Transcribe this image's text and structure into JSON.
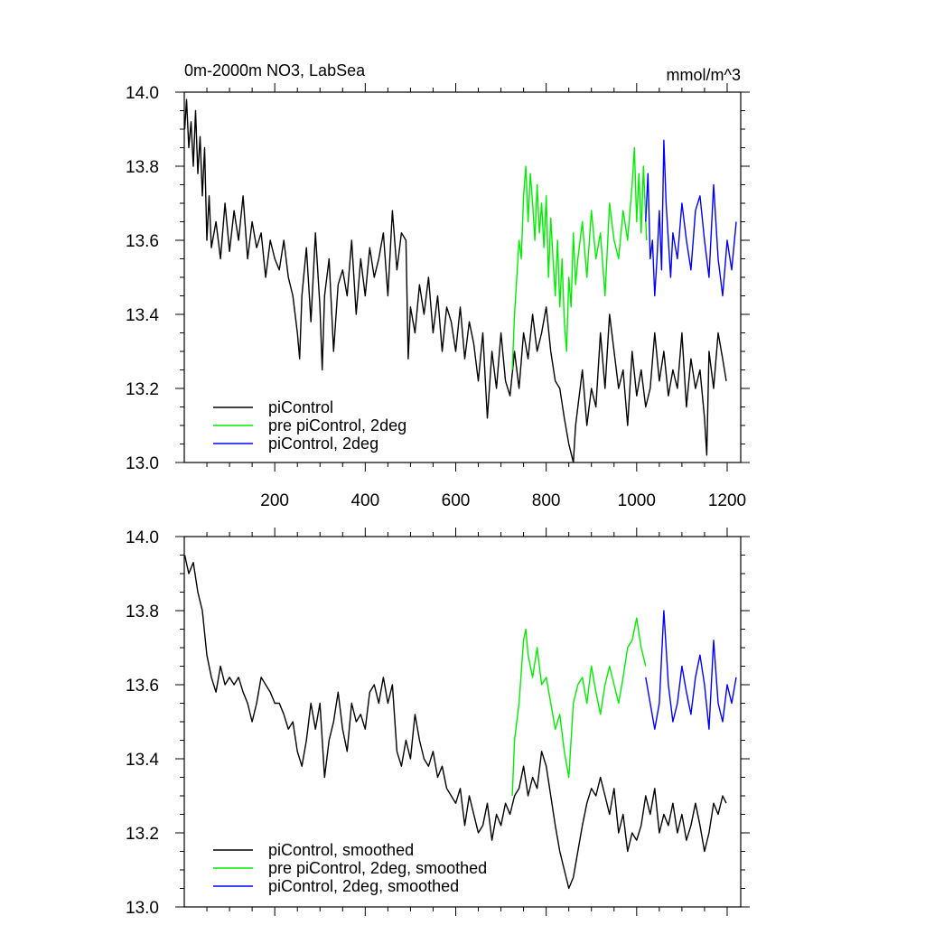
{
  "chart_data": [
    {
      "type": "line",
      "title": "0m-2000m NO3, LabSea",
      "units": "mmol/m^3",
      "xlim": [
        0,
        1230
      ],
      "ylim": [
        13.0,
        14.0
      ],
      "x_tick_labels": [
        "200",
        "400",
        "600",
        "800",
        "1000",
        "1200"
      ],
      "y_tick_labels": [
        "13.0",
        "13.2",
        "13.4",
        "13.6",
        "13.8",
        "14.0"
      ],
      "legend_position": "bottom-left",
      "series": [
        {
          "name": "piControl",
          "color": "#000000",
          "x": [
            1,
            5,
            10,
            15,
            20,
            25,
            30,
            35,
            40,
            45,
            50,
            55,
            60,
            70,
            80,
            90,
            100,
            110,
            120,
            130,
            140,
            150,
            160,
            170,
            180,
            190,
            200,
            210,
            220,
            230,
            240,
            250,
            255,
            260,
            270,
            280,
            290,
            300,
            305,
            310,
            320,
            330,
            340,
            350,
            360,
            370,
            380,
            390,
            400,
            410,
            420,
            430,
            440,
            450,
            460,
            470,
            480,
            490,
            495,
            500,
            510,
            520,
            530,
            540,
            550,
            560,
            570,
            580,
            590,
            600,
            610,
            620,
            630,
            640,
            650,
            660,
            670,
            680,
            690,
            700,
            710,
            720,
            730,
            740,
            750,
            760,
            770,
            780,
            790,
            800,
            810,
            820,
            830,
            840,
            850,
            860,
            865,
            870,
            880,
            890,
            900,
            910,
            920,
            930,
            940,
            950,
            960,
            970,
            980,
            990,
            1000,
            1010,
            1020,
            1030,
            1040,
            1050,
            1060,
            1070,
            1080,
            1090,
            1100,
            1110,
            1120,
            1130,
            1140,
            1150,
            1155,
            1160,
            1170,
            1180,
            1190,
            1198
          ],
          "y": [
            13.9,
            13.98,
            13.85,
            13.92,
            13.8,
            13.95,
            13.78,
            13.88,
            13.72,
            13.85,
            13.6,
            13.72,
            13.58,
            13.65,
            13.55,
            13.7,
            13.57,
            13.68,
            13.6,
            13.72,
            13.55,
            13.65,
            13.58,
            13.62,
            13.5,
            13.6,
            13.55,
            13.52,
            13.6,
            13.5,
            13.45,
            13.35,
            13.28,
            13.45,
            13.58,
            13.38,
            13.62,
            13.42,
            13.25,
            13.45,
            13.55,
            13.3,
            13.48,
            13.52,
            13.45,
            13.6,
            13.4,
            13.55,
            13.45,
            13.58,
            13.5,
            13.55,
            13.62,
            13.45,
            13.68,
            13.52,
            13.62,
            13.6,
            13.28,
            13.42,
            13.35,
            13.48,
            13.4,
            13.5,
            13.35,
            13.45,
            13.3,
            13.42,
            13.38,
            13.3,
            13.42,
            13.28,
            13.38,
            13.32,
            13.22,
            13.35,
            13.12,
            13.3,
            13.2,
            13.35,
            13.22,
            13.18,
            13.3,
            13.2,
            13.35,
            13.28,
            13.4,
            13.3,
            13.35,
            13.42,
            13.3,
            13.22,
            13.2,
            13.12,
            13.05,
            13.0,
            13.1,
            13.15,
            13.25,
            13.1,
            13.2,
            13.15,
            13.35,
            13.2,
            13.4,
            13.3,
            13.2,
            13.25,
            13.1,
            13.3,
            13.18,
            13.25,
            13.15,
            13.2,
            13.35,
            13.22,
            13.3,
            13.18,
            13.25,
            13.2,
            13.35,
            13.15,
            13.28,
            13.2,
            13.25,
            13.12,
            13.02,
            13.3,
            13.2,
            13.35,
            13.28,
            13.22
          ]
        },
        {
          "name": "pre piControl, 2deg",
          "color": "#00ee00",
          "x": [
            725,
            730,
            735,
            740,
            745,
            750,
            755,
            760,
            765,
            770,
            775,
            780,
            785,
            790,
            795,
            800,
            805,
            810,
            815,
            820,
            825,
            830,
            835,
            840,
            845,
            850,
            855,
            860,
            865,
            870,
            880,
            890,
            900,
            910,
            920,
            930,
            940,
            950,
            960,
            970,
            980,
            990,
            995,
            1000,
            1005,
            1010,
            1015,
            1022
          ],
          "y": [
            13.25,
            13.4,
            13.5,
            13.6,
            13.55,
            13.72,
            13.8,
            13.65,
            13.78,
            13.7,
            13.6,
            13.75,
            13.62,
            13.7,
            13.58,
            13.72,
            13.5,
            13.66,
            13.55,
            13.45,
            13.6,
            13.42,
            13.55,
            13.38,
            13.3,
            13.5,
            13.42,
            13.62,
            13.48,
            13.55,
            13.65,
            13.5,
            13.68,
            13.55,
            13.62,
            13.45,
            13.7,
            13.6,
            13.55,
            13.68,
            13.6,
            13.75,
            13.85,
            13.65,
            13.78,
            13.62,
            13.8,
            13.6
          ]
        },
        {
          "name": "piControl, 2deg",
          "color": "#0000ff",
          "x": [
            1020,
            1025,
            1030,
            1035,
            1040,
            1045,
            1050,
            1055,
            1060,
            1065,
            1070,
            1075,
            1080,
            1090,
            1100,
            1110,
            1120,
            1130,
            1140,
            1150,
            1160,
            1170,
            1180,
            1190,
            1200,
            1210,
            1220
          ],
          "y": [
            13.65,
            13.78,
            13.55,
            13.6,
            13.45,
            13.55,
            13.68,
            13.52,
            13.87,
            13.7,
            13.6,
            13.5,
            13.62,
            13.55,
            13.7,
            13.6,
            13.52,
            13.68,
            13.72,
            13.6,
            13.5,
            13.75,
            13.55,
            13.45,
            13.6,
            13.52,
            13.65
          ]
        }
      ]
    },
    {
      "type": "line",
      "xlim": [
        0,
        1230
      ],
      "ylim": [
        13.0,
        14.0
      ],
      "y_tick_labels": [
        "13.0",
        "13.2",
        "13.4",
        "13.6",
        "13.8",
        "14.0"
      ],
      "legend_position": "bottom-left",
      "series": [
        {
          "name": "piControl, smoothed",
          "color": "#000000",
          "x": [
            1,
            10,
            20,
            30,
            40,
            50,
            60,
            70,
            80,
            90,
            100,
            110,
            120,
            130,
            140,
            150,
            160,
            170,
            180,
            190,
            200,
            210,
            220,
            230,
            240,
            250,
            260,
            270,
            280,
            290,
            300,
            310,
            320,
            330,
            340,
            350,
            360,
            370,
            380,
            390,
            400,
            410,
            420,
            430,
            440,
            450,
            460,
            470,
            480,
            490,
            500,
            510,
            520,
            530,
            540,
            550,
            560,
            570,
            580,
            590,
            600,
            610,
            620,
            630,
            640,
            650,
            660,
            670,
            680,
            690,
            700,
            710,
            720,
            730,
            740,
            750,
            760,
            770,
            780,
            790,
            800,
            810,
            820,
            830,
            840,
            850,
            860,
            870,
            880,
            890,
            900,
            910,
            920,
            930,
            940,
            950,
            960,
            970,
            980,
            990,
            1000,
            1010,
            1020,
            1030,
            1040,
            1050,
            1060,
            1070,
            1080,
            1090,
            1100,
            1110,
            1120,
            1130,
            1140,
            1150,
            1160,
            1170,
            1180,
            1190,
            1198
          ],
          "y": [
            13.95,
            13.9,
            13.93,
            13.85,
            13.8,
            13.68,
            13.62,
            13.58,
            13.65,
            13.6,
            13.62,
            13.6,
            13.62,
            13.58,
            13.55,
            13.5,
            13.55,
            13.62,
            13.6,
            13.58,
            13.55,
            13.55,
            13.52,
            13.48,
            13.5,
            13.42,
            13.38,
            13.45,
            13.55,
            13.48,
            13.55,
            13.35,
            13.45,
            13.5,
            13.58,
            13.48,
            13.42,
            13.55,
            13.5,
            13.52,
            13.48,
            13.58,
            13.6,
            13.55,
            13.62,
            13.55,
            13.6,
            13.42,
            13.38,
            13.45,
            13.4,
            13.52,
            13.45,
            13.4,
            13.38,
            13.42,
            13.35,
            13.38,
            13.32,
            13.3,
            13.28,
            13.32,
            13.22,
            13.3,
            13.25,
            13.2,
            13.22,
            13.28,
            13.18,
            13.25,
            13.22,
            13.28,
            13.25,
            13.3,
            13.32,
            13.38,
            13.3,
            13.35,
            13.32,
            13.42,
            13.38,
            13.3,
            13.22,
            13.15,
            13.1,
            13.05,
            13.08,
            13.15,
            13.22,
            13.28,
            13.32,
            13.3,
            13.35,
            13.3,
            13.25,
            13.32,
            13.2,
            13.25,
            13.15,
            13.2,
            13.18,
            13.22,
            13.3,
            13.25,
            13.32,
            13.2,
            13.25,
            13.22,
            13.28,
            13.2,
            13.25,
            13.18,
            13.22,
            13.28,
            13.22,
            13.15,
            13.2,
            13.28,
            13.25,
            13.3,
            13.28
          ]
        },
        {
          "name": "pre piControl, 2deg, smoothed",
          "color": "#00ee00",
          "x": [
            725,
            730,
            740,
            750,
            755,
            760,
            770,
            780,
            790,
            800,
            810,
            820,
            830,
            840,
            850,
            855,
            860,
            870,
            880,
            890,
            900,
            910,
            920,
            930,
            940,
            950,
            960,
            970,
            980,
            990,
            1000,
            1010,
            1020
          ],
          "y": [
            13.3,
            13.45,
            13.55,
            13.72,
            13.75,
            13.68,
            13.62,
            13.7,
            13.6,
            13.62,
            13.55,
            13.48,
            13.52,
            13.42,
            13.35,
            13.45,
            13.55,
            13.6,
            13.62,
            13.55,
            13.65,
            13.58,
            13.52,
            13.6,
            13.65,
            13.6,
            13.55,
            13.62,
            13.7,
            13.72,
            13.78,
            13.7,
            13.65
          ]
        },
        {
          "name": "piControl, 2deg, smoothed",
          "color": "#0000ff",
          "x": [
            1020,
            1030,
            1040,
            1050,
            1060,
            1070,
            1080,
            1090,
            1100,
            1110,
            1120,
            1130,
            1140,
            1150,
            1160,
            1170,
            1180,
            1190,
            1200,
            1210,
            1220
          ],
          "y": [
            13.62,
            13.55,
            13.48,
            13.55,
            13.8,
            13.6,
            13.5,
            13.55,
            13.65,
            13.58,
            13.52,
            13.62,
            13.68,
            13.6,
            13.48,
            13.72,
            13.55,
            13.5,
            13.6,
            13.55,
            13.62
          ]
        }
      ]
    }
  ]
}
